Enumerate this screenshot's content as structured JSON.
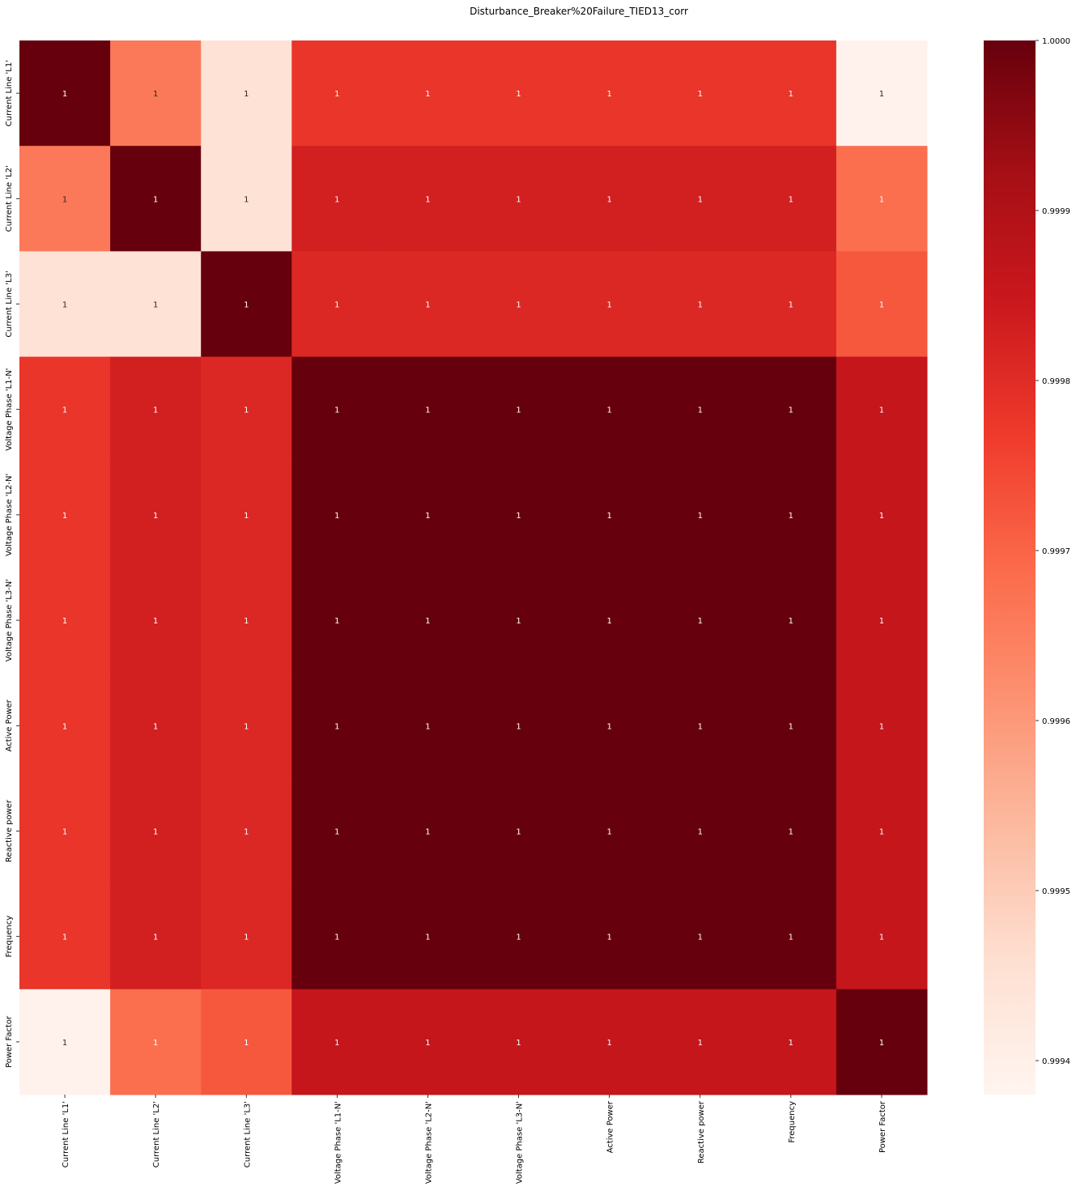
{
  "chart_data": {
    "type": "heatmap",
    "title": "Disturbance_Breaker%20Failure_TIED13_corr",
    "xlabel": "",
    "ylabel": "",
    "variables": [
      "Current Line 'L1'",
      "Current Line 'L2'",
      "Current Line 'L3'",
      "Voltage Phase 'L1-N'",
      "Voltage Phase 'L2-N'",
      "Voltage Phase 'L3-N'",
      "Active Power",
      "Reactive power",
      "Frequency",
      "Power Factor"
    ],
    "matrix": [
      [
        1.0,
        0.99966,
        0.99945,
        0.99978,
        0.99978,
        0.99978,
        0.99978,
        0.99978,
        0.99978,
        0.99939
      ],
      [
        0.99966,
        1.0,
        0.99945,
        0.99983,
        0.99983,
        0.99983,
        0.99983,
        0.99983,
        0.99983,
        0.99968
      ],
      [
        0.99945,
        0.99945,
        1.0,
        0.99981,
        0.99981,
        0.99981,
        0.99981,
        0.99981,
        0.99981,
        0.99972
      ],
      [
        0.99978,
        0.99983,
        0.99981,
        1.0,
        1.0,
        1.0,
        1.0,
        1.0,
        1.0,
        0.99986
      ],
      [
        0.99978,
        0.99983,
        0.99981,
        1.0,
        1.0,
        1.0,
        1.0,
        1.0,
        1.0,
        0.99986
      ],
      [
        0.99978,
        0.99983,
        0.99981,
        1.0,
        1.0,
        1.0,
        1.0,
        1.0,
        1.0,
        0.99986
      ],
      [
        0.99978,
        0.99983,
        0.99981,
        1.0,
        1.0,
        1.0,
        1.0,
        1.0,
        1.0,
        0.99986
      ],
      [
        0.99978,
        0.99983,
        0.99981,
        1.0,
        1.0,
        1.0,
        1.0,
        1.0,
        1.0,
        0.99986
      ],
      [
        0.99978,
        0.99983,
        0.99981,
        1.0,
        1.0,
        1.0,
        1.0,
        1.0,
        1.0,
        0.99986
      ],
      [
        0.99939,
        0.99968,
        0.99972,
        0.99986,
        0.99986,
        0.99986,
        0.99986,
        0.99986,
        0.99986,
        1.0
      ]
    ],
    "annotation_text": "1",
    "colormap": "Reds",
    "colors": [
      "#fff5f0",
      "#fee0d2",
      "#fcbba1",
      "#fc9272",
      "#fb6a4a",
      "#ef3b2c",
      "#cb181d",
      "#a50f15",
      "#67000d"
    ],
    "colorbar": {
      "range": [
        0.99938,
        1.0
      ],
      "ticks": [
        {
          "value": 1.0,
          "label": "1.0000"
        },
        {
          "value": 0.9999,
          "label": "0.9999"
        },
        {
          "value": 0.9998,
          "label": "0.9998"
        },
        {
          "value": 0.9997,
          "label": "0.9997"
        },
        {
          "value": 0.9996,
          "label": "0.9996"
        },
        {
          "value": 0.9995,
          "label": "0.9995"
        },
        {
          "value": 0.9994,
          "label": "0.9994"
        }
      ]
    },
    "grid": false
  }
}
